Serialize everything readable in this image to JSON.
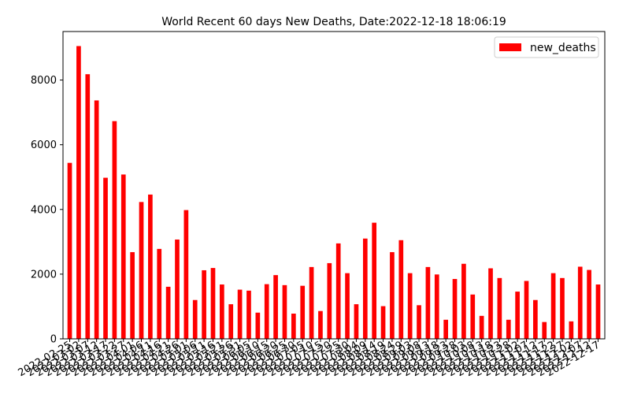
{
  "chart_data": {
    "type": "bar",
    "title": "World Recent 60 days New Deaths, Date:2022-12-18 18:06:19",
    "xlabel": "",
    "ylabel": "",
    "ylim": [
      0,
      9500
    ],
    "yticks": [
      0,
      2000,
      4000,
      6000,
      8000
    ],
    "legend": {
      "position": "top-right"
    },
    "grid": false,
    "colors": {
      "bar": "#ff0000"
    },
    "series": [
      {
        "name": "new_deaths",
        "values": [
          5440,
          9050,
          8180,
          7370,
          4980,
          6730,
          5080,
          2680,
          4230,
          4460,
          2780,
          1610,
          3070,
          3980,
          1200,
          2120,
          2190,
          1680,
          1070,
          1520,
          1490,
          810,
          1690,
          1970,
          1660,
          780,
          1640,
          2220,
          860,
          2340,
          2950,
          2030,
          1070,
          3100,
          3590,
          1010,
          2680,
          3050,
          2030,
          1040,
          2220,
          1990,
          590,
          1850,
          2320,
          1370,
          710,
          2180,
          1880,
          590,
          1460,
          1790,
          1200,
          520,
          2030,
          1880,
          540,
          2230,
          2130,
          1680
        ]
      }
    ],
    "categories": [
      "2022-02-25",
      "2022-03-02",
      "2022-03-07",
      "2022-03-12",
      "2022-03-17",
      "2022-03-22",
      "2022-03-27",
      "2022-04-01",
      "2022-04-06",
      "2022-04-11",
      "2022-04-16",
      "2022-04-21",
      "2022-04-26",
      "2022-05-01",
      "2022-05-06",
      "2022-05-11",
      "2022-05-16",
      "2022-05-21",
      "2022-05-26",
      "2022-05-31",
      "2022-06-05",
      "2022-06-10",
      "2022-06-15",
      "2022-06-20",
      "2022-06-25",
      "2022-06-30",
      "2022-07-05",
      "2022-07-10",
      "2022-07-15",
      "2022-07-20",
      "2022-07-25",
      "2022-07-30",
      "2022-08-04",
      "2022-08-09",
      "2022-08-14",
      "2022-08-19",
      "2022-08-24",
      "2022-08-29",
      "2022-09-03",
      "2022-09-08",
      "2022-09-13",
      "2022-09-18",
      "2022-09-23",
      "2022-09-28",
      "2022-10-03",
      "2022-10-08",
      "2022-10-13",
      "2022-10-18",
      "2022-10-23",
      "2022-10-28",
      "2022-11-02",
      "2022-11-07",
      "2022-11-12",
      "2022-11-17",
      "2022-11-22",
      "2022-11-27",
      "2022-12-02",
      "2022-12-07",
      "2022-12-12",
      "2022-12-17"
    ]
  }
}
